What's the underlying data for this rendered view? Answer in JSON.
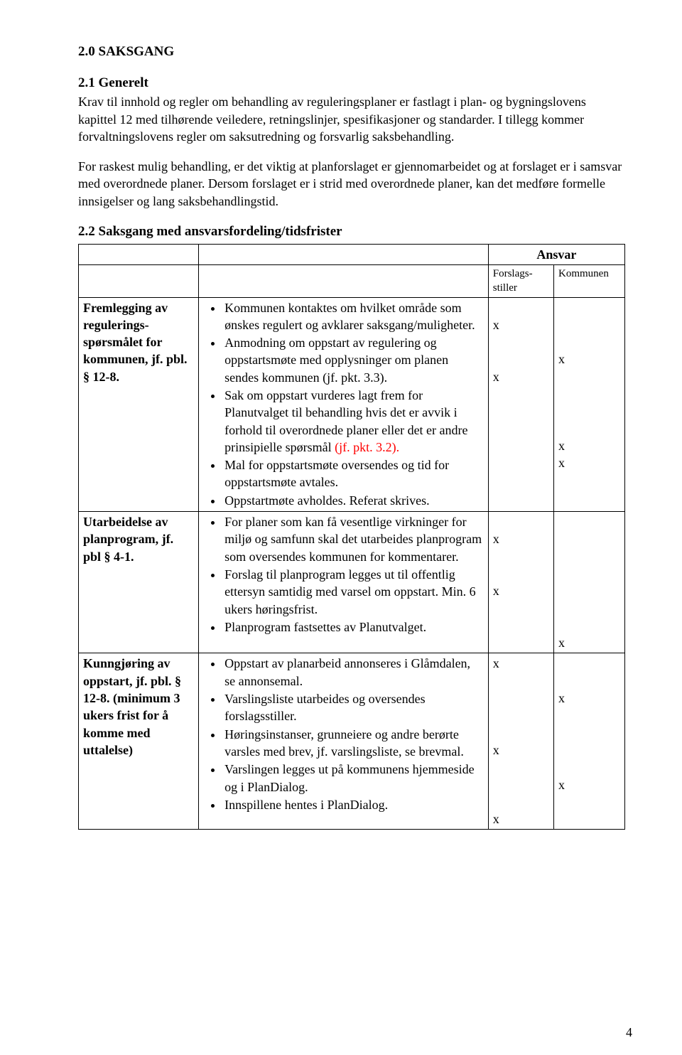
{
  "section": {
    "title": "2.0 SAKSGANG",
    "sub1_title": "2.1 Generelt",
    "p1": "Krav til innhold og regler om behandling av reguleringsplaner er fastlagt i plan- og bygningslovens kapittel 12 med tilhørende veiledere, retningslinjer, spesifikasjoner og standarder. I tillegg kommer forvaltningslovens regler om saksutredning og forsvarlig saksbehandling.",
    "p2": "For raskest mulig behandling, er det viktig at planforslaget er gjennomarbeidet og at forslaget er i samsvar med overordnede planer. Dersom forslaget er i strid med overordnede planer, kan det medføre formelle innsigelser og lang saksbehandlingstid.",
    "sub2_title": "2.2 Saksgang med ansvarsfordeling/tidsfrister"
  },
  "table": {
    "ansvar": "Ansvar",
    "col_forslag": "Forslags-stiller",
    "col_kommunen": "Kommunen",
    "rows": [
      {
        "label": "Fremlegging av regulerings-spørsmålet for kommunen, jf. pbl. § 12-8.",
        "items": [
          {
            "t": "Kommunen kontaktes om hvilket område som ønskes regulert og avklarer saksgang/muligheter."
          },
          {
            "t": "Anmodning om oppstart av regulering og oppstartsmøte med opplysninger om planen sendes kommunen (jf. pkt. 3.3)."
          },
          {
            "t": "Sak om oppstart vurderes lagt frem for Planutvalget til behandling hvis det er avvik i forhold til overordnede planer eller det er andre prinsipielle spørsmål ",
            "red": "(jf. pkt. 3.2)."
          },
          {
            "t": "Mal for oppstartsmøte oversendes og tid for oppstartsmøte avtales."
          },
          {
            "t": "Oppstartmøte avholdes. Referat skrives."
          }
        ],
        "f_marks": " \nx\n \n \nx",
        "k_marks": " \n \n \nx\n \n \n \n \nx\nx"
      },
      {
        "label": "Utarbeidelse av planprogram, jf. pbl § 4-1.",
        "items": [
          {
            "t": "For planer som kan få vesentlige virkninger for miljø og samfunn skal det utarbeides planprogram som oversendes kommunen for kommentarer."
          },
          {
            "t": "Forslag til planprogram legges ut til offentlig ettersyn samtidig med varsel om oppstart. Min. 6 ukers høringsfrist."
          },
          {
            "t": "Planprogram fastsettes av Planutvalget."
          }
        ],
        "f_marks": " \nx\n \n \nx",
        "k_marks": " \n \n \n \n \n \n \nx"
      },
      {
        "label": "Kunngjøring av oppstart, jf. pbl. § 12-8. (minimum 3 ukers frist for å komme med uttalelse)",
        "items": [
          {
            "t": "Oppstart av planarbeid annonseres i Glåmdalen, se annonsemal."
          },
          {
            "t": "Varslingsliste utarbeides og oversendes forslagsstiller."
          },
          {
            "t": "Høringsinstanser, grunneiere og andre berørte varsles med brev, jf. varslingsliste, se brevmal."
          },
          {
            "t": "Varslingen legges ut på kommunens hjemmeside og i PlanDialog."
          },
          {
            "t": "Innspillene hentes i PlanDialog."
          }
        ],
        "f_marks": "x\n \n \n \n \nx\n \n \n \nx",
        "k_marks": " \n \nx\n \n \n \n \nx"
      }
    ]
  },
  "page_number": "4"
}
